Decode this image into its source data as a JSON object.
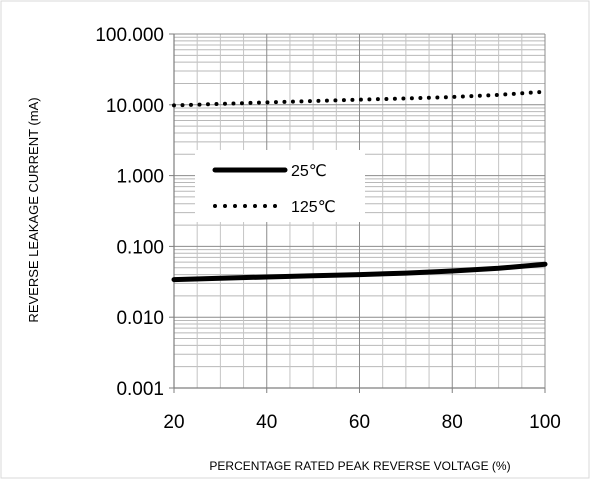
{
  "chart_data": {
    "type": "line",
    "title": "",
    "xlabel": "PERCENTAGE RATED PEAK REVERSE VOLTAGE (%)",
    "ylabel": "REVERSE LEAKAGE CURRENT (mA)",
    "xlim": [
      20,
      100
    ],
    "ylim": [
      0.001,
      100
    ],
    "y_scale": "log",
    "grid": true,
    "legend_position": "upper-left inside plot",
    "x_ticks": [
      20,
      40,
      60,
      80,
      100
    ],
    "x_tick_labels": [
      "20",
      "40",
      "60",
      "80",
      "100"
    ],
    "y_ticks": [
      0.001,
      0.01,
      0.1,
      1,
      10,
      100
    ],
    "y_tick_labels": [
      "0.001",
      "0.010",
      "0.100",
      "1.000",
      "10.000",
      "100.000"
    ],
    "series": [
      {
        "name": "25℃",
        "style": "solid",
        "color": "#000000",
        "x": [
          20,
          30,
          40,
          50,
          60,
          70,
          80,
          90,
          100
        ],
        "values": [
          0.034,
          0.0355,
          0.037,
          0.0385,
          0.04,
          0.042,
          0.045,
          0.049,
          0.056
        ]
      },
      {
        "name": "125℃",
        "style": "dotted",
        "color": "#000000",
        "x": [
          20,
          30,
          40,
          50,
          60,
          70,
          80,
          90,
          100
        ],
        "values": [
          9.8,
          10.3,
          10.8,
          11.3,
          11.8,
          12.3,
          12.9,
          13.8,
          15.3
        ]
      }
    ]
  }
}
